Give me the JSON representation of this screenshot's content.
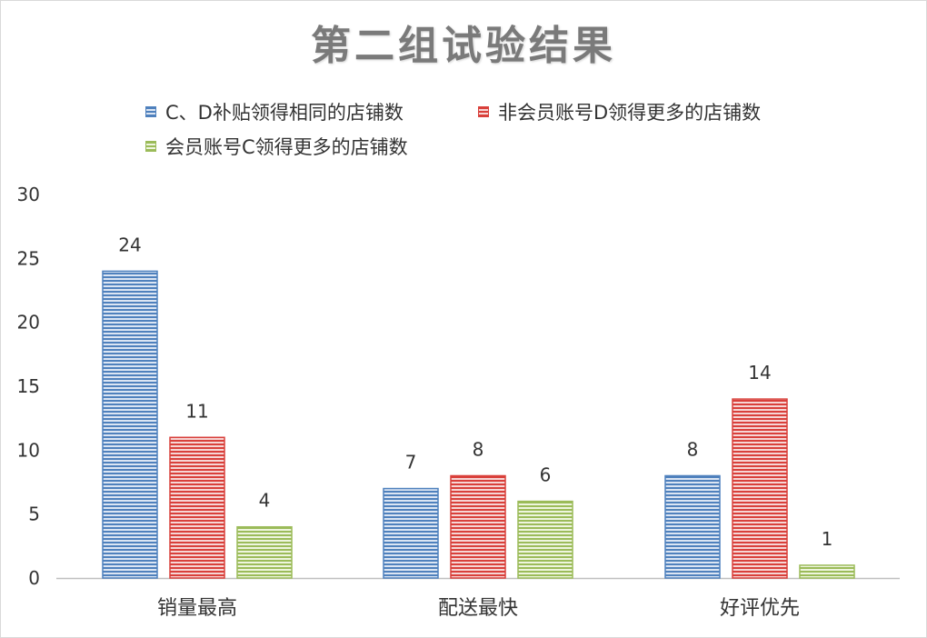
{
  "chart_data": {
    "type": "bar",
    "title": "第二组试验结果",
    "categories": [
      "销量最高",
      "配送最快",
      "好评优先"
    ],
    "series": [
      {
        "name": "C、D补贴领得相同的店铺数",
        "values": [
          24,
          7,
          8
        ],
        "color": "#4f81bd",
        "stripe": "#dbe5f3"
      },
      {
        "name": "非会员账号D领得更多的店铺数",
        "values": [
          11,
          8,
          14
        ],
        "color": "#d9403b",
        "stripe": "#f6d6d5"
      },
      {
        "name": "会员账号C领得更多的店铺数",
        "values": [
          4,
          6,
          1
        ],
        "color": "#9bbb59",
        "stripe": "#eef5de"
      }
    ],
    "ylim": [
      0,
      30
    ],
    "yticks": [
      0,
      5,
      10,
      15,
      20,
      25,
      30
    ],
    "xlabel": "",
    "ylabel": "",
    "grid": false,
    "legend_position": "top"
  }
}
